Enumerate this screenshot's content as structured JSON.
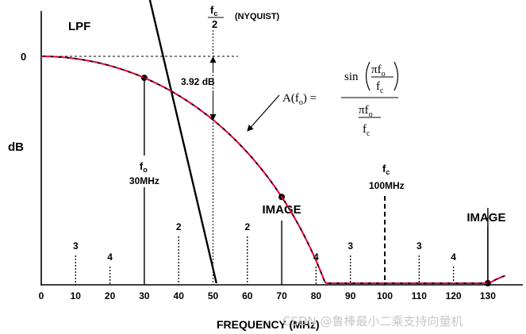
{
  "chart_data": {
    "type": "line",
    "title": "",
    "xlabel": "FREQUENCY (MHz)",
    "ylabel": "dB",
    "xlim": [
      0,
      140
    ],
    "x_ticks": [
      0,
      10,
      20,
      30,
      40,
      50,
      60,
      70,
      80,
      90,
      100,
      110,
      120,
      130
    ],
    "y_ticks": [
      "0"
    ],
    "grid": false,
    "sample_rate_mhz": 100,
    "series": [
      {
        "name": "LPF",
        "kind": "filter-response",
        "color": "#000000",
        "points": [
          [
            0,
            6.3
          ],
          [
            28.5,
            6.3
          ],
          [
            51,
            -55
          ]
        ]
      },
      {
        "name": "",
        "kind": "sinc-envelope",
        "color": "#000000",
        "overlay_color": "#e8003c",
        "x_range": [
          0,
          135
        ]
      }
    ],
    "marked_points": [
      {
        "x": 30,
        "label_lines": [
          "f",
          "o",
          "30MHz"
        ]
      },
      {
        "x": 70,
        "label_lines": [
          "IMAGE"
        ]
      },
      {
        "x": 130,
        "label_lines": [
          "IMAGE"
        ]
      }
    ],
    "harmonic_markers": [
      {
        "x": 10,
        "label": "3"
      },
      {
        "x": 20,
        "label": "4"
      },
      {
        "x": 40,
        "label": "2"
      },
      {
        "x": 60,
        "label": "2"
      },
      {
        "x": 80,
        "label": "4"
      },
      {
        "x": 90,
        "label": "3"
      },
      {
        "x": 110,
        "label": "3"
      },
      {
        "x": 120,
        "label": "4"
      }
    ],
    "annotations": {
      "nyquist_x": 50,
      "nyquist_frac_num": "f",
      "nyquist_frac_num_sub": "c",
      "nyquist_frac_den": "2",
      "nyquist_label": "(NYQUIST)",
      "nyquist_drop": "3.92 dB",
      "nyquist_drop_db": 3.92,
      "fc_x": 100,
      "fc_label": "f",
      "fc_sub": "c",
      "fc_value": "100MHz",
      "lpf_label": "LPF",
      "zero_db_label": "0"
    },
    "formula": {
      "lhs": "A(f",
      "lhs_sub": "o",
      "lhs_close": ") =",
      "sin": "sin",
      "pi": "πf",
      "f": "f",
      "sub_o": "o",
      "sub_c": "c"
    }
  },
  "watermark": "CSDN @鲁棒最小二乘支持向量机"
}
